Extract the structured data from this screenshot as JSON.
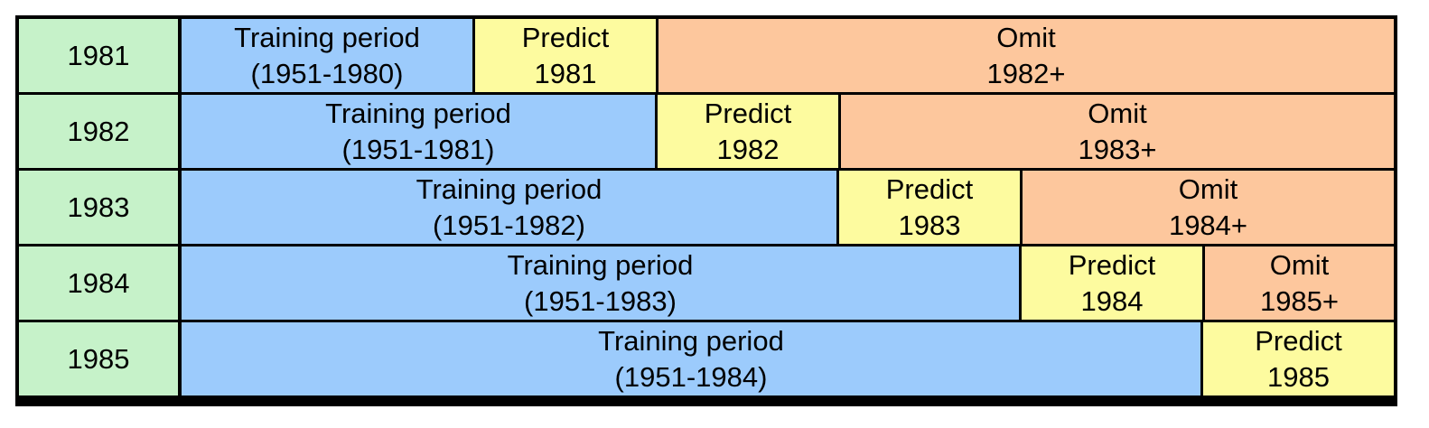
{
  "colors": {
    "year": "#c6f2c9",
    "training": "#9ccbfc",
    "predict": "#fdfb9f",
    "omit": "#fdc79d",
    "border": "#000000"
  },
  "rows": [
    {
      "year": "1981",
      "training": {
        "line1": "Training period",
        "line2": "(1951-1980)"
      },
      "predict": {
        "line1": "Predict",
        "line2": "1981"
      },
      "omit": {
        "line1": "Omit",
        "line2": "1982+"
      }
    },
    {
      "year": "1982",
      "training": {
        "line1": "Training period",
        "line2": "(1951-1981)"
      },
      "predict": {
        "line1": "Predict",
        "line2": "1982"
      },
      "omit": {
        "line1": "Omit",
        "line2": "1983+"
      }
    },
    {
      "year": "1983",
      "training": {
        "line1": "Training period",
        "line2": "(1951-1982)"
      },
      "predict": {
        "line1": "Predict",
        "line2": "1983"
      },
      "omit": {
        "line1": "Omit",
        "line2": "1984+"
      }
    },
    {
      "year": "1984",
      "training": {
        "line1": "Training period",
        "line2": "(1951-1983)"
      },
      "predict": {
        "line1": "Predict",
        "line2": "1984"
      },
      "omit": {
        "line1": "Omit",
        "line2": "1985+"
      }
    },
    {
      "year": "1985",
      "training": {
        "line1": "Training period",
        "line2": "(1951-1984)"
      },
      "predict": {
        "line1": "Predict",
        "line2": "1985"
      },
      "omit": null
    }
  ]
}
